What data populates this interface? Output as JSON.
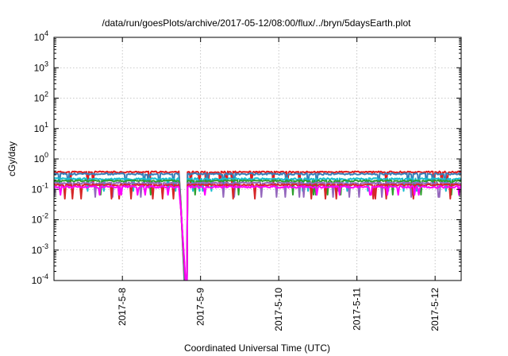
{
  "chart_data": {
    "type": "line",
    "title": "/data/run/goesPlots/archive/2017-05-12/08:00/flux/../bryn/5daysEarth.plot",
    "xlabel": "Coordinated Universal Time (UTC)",
    "ylabel": "cGy/day",
    "yscale": "log",
    "ylim": [
      0.0001,
      10000
    ],
    "xlim": [
      "2017-05-07 03:00",
      "2017-05-12 08:00"
    ],
    "grid": true,
    "legend": "none",
    "x_ticks": [
      "2017-5-8",
      "2017-5-9",
      "2017-5-10",
      "2017-5-11",
      "2017-5-12"
    ],
    "y_ticks": [
      {
        "value": 0.0001,
        "base": "10",
        "exp": "-4"
      },
      {
        "value": 0.001,
        "base": "10",
        "exp": "-3"
      },
      {
        "value": 0.01,
        "base": "10",
        "exp": "-2"
      },
      {
        "value": 0.1,
        "base": "10",
        "exp": "-1"
      },
      {
        "value": 1,
        "base": "10",
        "exp": "0"
      },
      {
        "value": 10,
        "base": "10",
        "exp": "1"
      },
      {
        "value": 100,
        "base": "10",
        "exp": "2"
      },
      {
        "value": 1000,
        "base": "10",
        "exp": "3"
      },
      {
        "value": 10000,
        "base": "10",
        "exp": "4"
      }
    ],
    "dropout": {
      "start": "2017-05-08 17:30",
      "end": "2017-05-08 20:00",
      "recover_level": 0.00015
    },
    "series": [
      {
        "color": "#e41a1c",
        "level": 0.37,
        "noise": 0.06,
        "dip_depth": 0.35,
        "seed": 11
      },
      {
        "color": "#377eb8",
        "level": 0.32,
        "noise": 0.07,
        "dip_depth": 0.4,
        "seed": 23
      },
      {
        "color": "#17becf",
        "level": 0.22,
        "noise": 0.07,
        "dip_depth": 0.4,
        "seed": 37
      },
      {
        "color": "#2ca02c",
        "level": 0.19,
        "noise": 0.06,
        "dip_depth": 0.35,
        "seed": 41
      },
      {
        "color": "#9467bd",
        "level": 0.16,
        "noise": 0.06,
        "dip_depth": 0.35,
        "seed": 53
      },
      {
        "color": "#d62728",
        "level": 0.14,
        "noise": 0.05,
        "dip_depth": 0.35,
        "seed": 67
      },
      {
        "color": "#ff00ff",
        "level": 0.12,
        "noise": 0.08,
        "dip_depth": 0.55,
        "seed": 79
      }
    ]
  }
}
